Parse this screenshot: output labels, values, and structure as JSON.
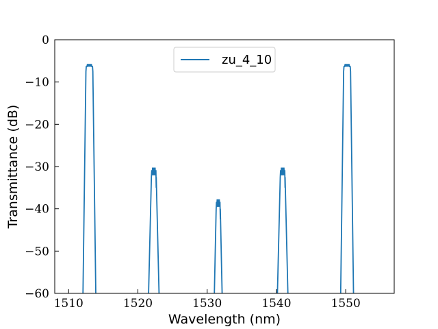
{
  "chart_data": {
    "type": "line",
    "title": "",
    "xlabel": "Wavelength (nm)",
    "ylabel": "Transmittance (dB)",
    "xlim": [
      1508,
      1557
    ],
    "ylim": [
      -60,
      0
    ],
    "xticks": [
      1510,
      1520,
      1530,
      1540,
      1550
    ],
    "yticks": [
      0,
      -10,
      -20,
      -30,
      -40,
      -50,
      -60
    ],
    "xtick_labels": [
      "1510",
      "1520",
      "1530",
      "1540",
      "1550"
    ],
    "ytick_labels": [
      "0",
      "−10",
      "−20",
      "−30",
      "−40",
      "−50",
      "−60"
    ],
    "grid": false,
    "legend_position": "top-center",
    "series": [
      {
        "name": "zu_4_10",
        "color": "#1f77b4",
        "peaks": [
          {
            "center": 1513.0,
            "peak_db": -6.0,
            "flat_halfwidth": 0.45,
            "edge_halfwidth": 0.95
          },
          {
            "center": 1522.3,
            "peak_db": -31.0,
            "flat_halfwidth": 0.3,
            "edge_halfwidth": 0.8
          },
          {
            "center": 1531.6,
            "peak_db": -38.5,
            "flat_halfwidth": 0.25,
            "edge_halfwidth": 0.6
          },
          {
            "center": 1540.9,
            "peak_db": -31.0,
            "flat_halfwidth": 0.3,
            "edge_halfwidth": 0.8
          },
          {
            "center": 1550.2,
            "peak_db": -6.0,
            "flat_halfwidth": 0.45,
            "edge_halfwidth": 0.95
          }
        ]
      }
    ]
  }
}
